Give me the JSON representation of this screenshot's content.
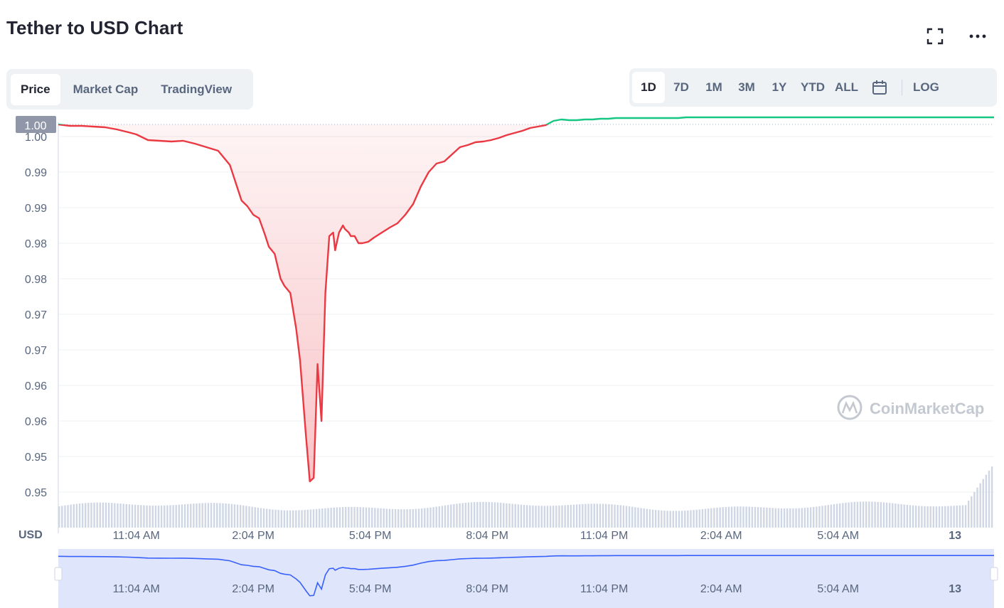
{
  "header": {
    "title": "Tether to USD Chart",
    "fullscreen_icon": "expand-icon",
    "more_icon": "more-dots-icon"
  },
  "tabs": [
    {
      "label": "Price",
      "active": true
    },
    {
      "label": "Market Cap",
      "active": false
    },
    {
      "label": "TradingView",
      "active": false
    }
  ],
  "ranges": {
    "items": [
      "1D",
      "7D",
      "1M",
      "3M",
      "1Y",
      "YTD",
      "ALL"
    ],
    "active": "1D",
    "calendar_icon": "calendar-icon",
    "log_label": "LOG"
  },
  "colors": {
    "accent_blue": "#3861fb",
    "down_red": "#ea3943",
    "up_green": "#16c784",
    "grid": "#eff2f5",
    "text_muted": "#58667e",
    "volume_bar": "#cfd6e4",
    "navigator_fill": "#dfe5fb"
  },
  "watermark": "CoinMarketCap",
  "chart_data": {
    "type": "line",
    "currency_label": "USD",
    "current_price_label": "1.00",
    "ylim": [
      0.945,
      1.002
    ],
    "y_ticks": [
      1.0,
      0.995,
      0.99,
      0.985,
      0.98,
      0.975,
      0.97,
      0.965,
      0.96,
      0.955,
      0.95
    ],
    "y_tick_labels": [
      "1.00",
      "0.99",
      "0.99",
      "0.98",
      "0.98",
      "0.97",
      "0.97",
      "0.96",
      "0.96",
      "0.95",
      "0.95"
    ],
    "x_ticks": [
      2.0,
      5.0,
      8.0,
      11.0,
      14.0,
      17.0,
      20.0,
      23.0
    ],
    "x_tick_labels": [
      "11:04 AM",
      "2:04 PM",
      "5:04 PM",
      "8:04 PM",
      "11:04 PM",
      "2:04 AM",
      "5:04 AM",
      "13"
    ],
    "xlim": [
      0,
      24
    ],
    "baseline": 1.0017,
    "series": [
      {
        "x": [
          0,
          0.3,
          0.6,
          0.9,
          1.2,
          1.5,
          1.8,
          2.0,
          2.3,
          2.6,
          2.9,
          3.2,
          3.5,
          3.8,
          4.1,
          4.4,
          4.7,
          4.85,
          5.0,
          5.15,
          5.3,
          5.4,
          5.55,
          5.7,
          5.8,
          5.95,
          6.1,
          6.2,
          6.35,
          6.45,
          6.55,
          6.65,
          6.75,
          6.85,
          6.95,
          7.05,
          7.1,
          7.2,
          7.3,
          7.35,
          7.45,
          7.5,
          7.6,
          7.7,
          7.8,
          7.95,
          8.1,
          8.3,
          8.5,
          8.7,
          8.9,
          9.1,
          9.3,
          9.5,
          9.7,
          9.9,
          10.1,
          10.3,
          10.5,
          10.7,
          10.9,
          11.1,
          11.3,
          11.5,
          11.7,
          11.9,
          12.1,
          12.3,
          12.5,
          12.7,
          12.9,
          13.1,
          13.3,
          13.5,
          13.7,
          13.9,
          14.1,
          14.3,
          14.5,
          14.7,
          14.9,
          15.1,
          15.3,
          15.5,
          15.7,
          15.9,
          16.1,
          16.3,
          16.5,
          16.7,
          16.9,
          17.1,
          17.4,
          17.7,
          18.0,
          18.3,
          18.6,
          18.9,
          19.2,
          19.5,
          19.8,
          20.1,
          20.4,
          20.7,
          21.0,
          21.3,
          21.6,
          21.9,
          22.2,
          22.5,
          22.8,
          23.1,
          23.4,
          23.7,
          24.0
        ],
        "values": [
          1.0017,
          1.0015,
          1.0015,
          1.0014,
          1.0013,
          1.001,
          1.0006,
          1.0003,
          0.9995,
          0.9994,
          0.9993,
          0.9994,
          0.999,
          0.9985,
          0.998,
          0.996,
          0.991,
          0.9902,
          0.989,
          0.9885,
          0.9862,
          0.9845,
          0.9835,
          0.98,
          0.979,
          0.978,
          0.973,
          0.9685,
          0.958,
          0.9515,
          0.952,
          0.968,
          0.96,
          0.978,
          0.986,
          0.9865,
          0.984,
          0.9865,
          0.9875,
          0.987,
          0.9865,
          0.986,
          0.986,
          0.985,
          0.985,
          0.9852,
          0.9858,
          0.9865,
          0.9872,
          0.9878,
          0.989,
          0.9905,
          0.993,
          0.995,
          0.9962,
          0.9965,
          0.9975,
          0.9985,
          0.9988,
          0.9992,
          0.9993,
          0.9995,
          0.9998,
          1.0002,
          1.0005,
          1.0008,
          1.0012,
          1.0014,
          1.0016,
          1.0022,
          1.0024,
          1.0023,
          1.0023,
          1.0024,
          1.0024,
          1.0025,
          1.0025,
          1.0026,
          1.0026,
          1.0026,
          1.0026,
          1.0026,
          1.0026,
          1.0026,
          1.0026,
          1.0026,
          1.0027,
          1.0027,
          1.0027,
          1.0027,
          1.0027,
          1.0027,
          1.0027,
          1.0027,
          1.0027,
          1.0027,
          1.0027,
          1.0027,
          1.0027,
          1.0027,
          1.0027,
          1.0027,
          1.0027,
          1.0027,
          1.0027,
          1.0027,
          1.0027,
          1.0027,
          1.0027,
          1.0027,
          1.0027,
          1.0027,
          1.0027,
          1.0027,
          1.0027
        ]
      }
    ]
  }
}
